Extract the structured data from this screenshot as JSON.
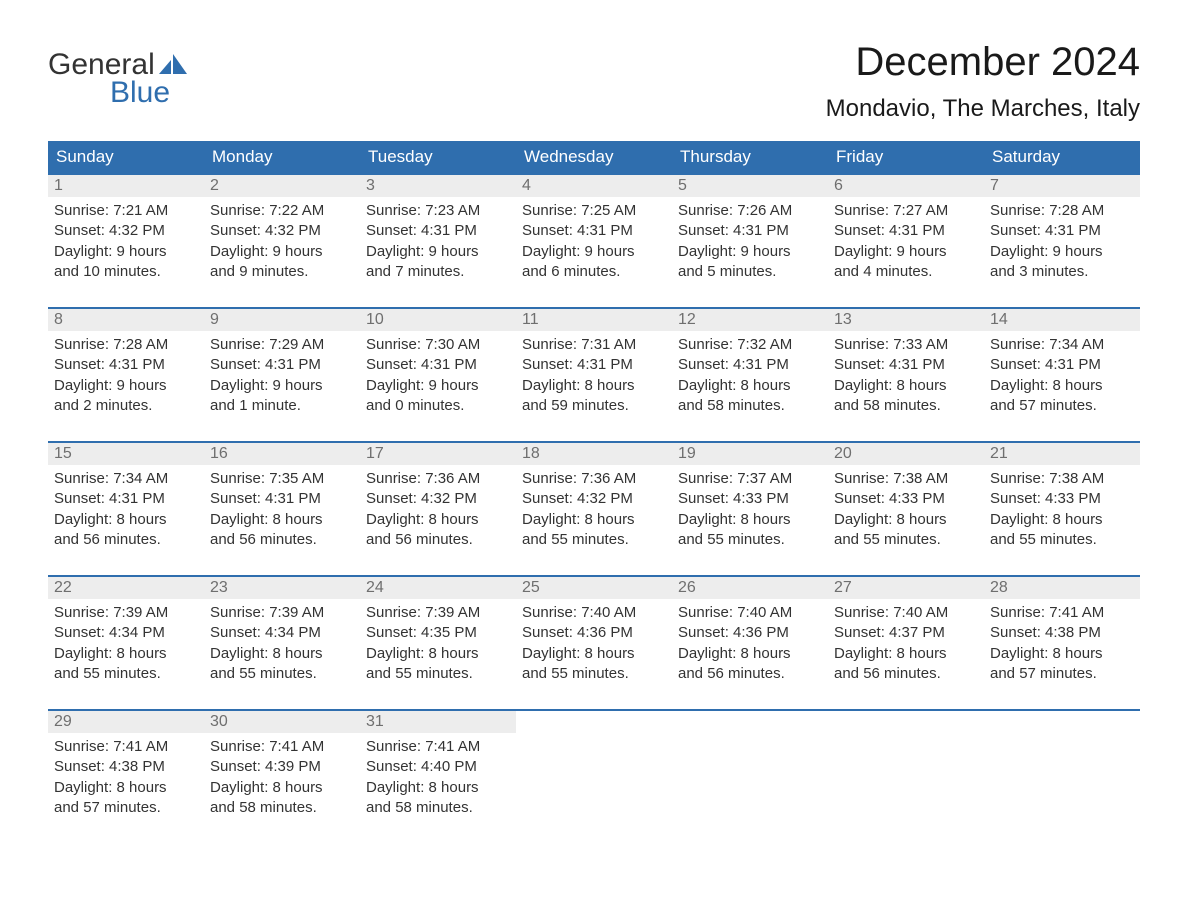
{
  "brand": {
    "word1": "General",
    "word2": "Blue",
    "word1_color": "#333333",
    "word2_color": "#2f6eae",
    "sail_color": "#2f6eae"
  },
  "title": "December 2024",
  "location": "Mondavio, The Marches, Italy",
  "colors": {
    "header_bg": "#2f6eae",
    "header_text": "#ffffff",
    "daynum_bg": "#ededed",
    "daynum_text": "#6f6f6f",
    "row_border": "#2f6eae",
    "body_text": "#333333",
    "page_bg": "#ffffff"
  },
  "fonts": {
    "title_size_pt": 30,
    "location_size_pt": 18,
    "dayhead_size_pt": 13,
    "daynum_size_pt": 12,
    "body_size_pt": 11
  },
  "day_headers": [
    "Sunday",
    "Monday",
    "Tuesday",
    "Wednesday",
    "Thursday",
    "Friday",
    "Saturday"
  ],
  "weeks": [
    [
      {
        "n": "1",
        "sunrise": "Sunrise: 7:21 AM",
        "sunset": "Sunset: 4:32 PM",
        "d1": "Daylight: 9 hours",
        "d2": "and 10 minutes."
      },
      {
        "n": "2",
        "sunrise": "Sunrise: 7:22 AM",
        "sunset": "Sunset: 4:32 PM",
        "d1": "Daylight: 9 hours",
        "d2": "and 9 minutes."
      },
      {
        "n": "3",
        "sunrise": "Sunrise: 7:23 AM",
        "sunset": "Sunset: 4:31 PM",
        "d1": "Daylight: 9 hours",
        "d2": "and 7 minutes."
      },
      {
        "n": "4",
        "sunrise": "Sunrise: 7:25 AM",
        "sunset": "Sunset: 4:31 PM",
        "d1": "Daylight: 9 hours",
        "d2": "and 6 minutes."
      },
      {
        "n": "5",
        "sunrise": "Sunrise: 7:26 AM",
        "sunset": "Sunset: 4:31 PM",
        "d1": "Daylight: 9 hours",
        "d2": "and 5 minutes."
      },
      {
        "n": "6",
        "sunrise": "Sunrise: 7:27 AM",
        "sunset": "Sunset: 4:31 PM",
        "d1": "Daylight: 9 hours",
        "d2": "and 4 minutes."
      },
      {
        "n": "7",
        "sunrise": "Sunrise: 7:28 AM",
        "sunset": "Sunset: 4:31 PM",
        "d1": "Daylight: 9 hours",
        "d2": "and 3 minutes."
      }
    ],
    [
      {
        "n": "8",
        "sunrise": "Sunrise: 7:28 AM",
        "sunset": "Sunset: 4:31 PM",
        "d1": "Daylight: 9 hours",
        "d2": "and 2 minutes."
      },
      {
        "n": "9",
        "sunrise": "Sunrise: 7:29 AM",
        "sunset": "Sunset: 4:31 PM",
        "d1": "Daylight: 9 hours",
        "d2": "and 1 minute."
      },
      {
        "n": "10",
        "sunrise": "Sunrise: 7:30 AM",
        "sunset": "Sunset: 4:31 PM",
        "d1": "Daylight: 9 hours",
        "d2": "and 0 minutes."
      },
      {
        "n": "11",
        "sunrise": "Sunrise: 7:31 AM",
        "sunset": "Sunset: 4:31 PM",
        "d1": "Daylight: 8 hours",
        "d2": "and 59 minutes."
      },
      {
        "n": "12",
        "sunrise": "Sunrise: 7:32 AM",
        "sunset": "Sunset: 4:31 PM",
        "d1": "Daylight: 8 hours",
        "d2": "and 58 minutes."
      },
      {
        "n": "13",
        "sunrise": "Sunrise: 7:33 AM",
        "sunset": "Sunset: 4:31 PM",
        "d1": "Daylight: 8 hours",
        "d2": "and 58 minutes."
      },
      {
        "n": "14",
        "sunrise": "Sunrise: 7:34 AM",
        "sunset": "Sunset: 4:31 PM",
        "d1": "Daylight: 8 hours",
        "d2": "and 57 minutes."
      }
    ],
    [
      {
        "n": "15",
        "sunrise": "Sunrise: 7:34 AM",
        "sunset": "Sunset: 4:31 PM",
        "d1": "Daylight: 8 hours",
        "d2": "and 56 minutes."
      },
      {
        "n": "16",
        "sunrise": "Sunrise: 7:35 AM",
        "sunset": "Sunset: 4:31 PM",
        "d1": "Daylight: 8 hours",
        "d2": "and 56 minutes."
      },
      {
        "n": "17",
        "sunrise": "Sunrise: 7:36 AM",
        "sunset": "Sunset: 4:32 PM",
        "d1": "Daylight: 8 hours",
        "d2": "and 56 minutes."
      },
      {
        "n": "18",
        "sunrise": "Sunrise: 7:36 AM",
        "sunset": "Sunset: 4:32 PM",
        "d1": "Daylight: 8 hours",
        "d2": "and 55 minutes."
      },
      {
        "n": "19",
        "sunrise": "Sunrise: 7:37 AM",
        "sunset": "Sunset: 4:33 PM",
        "d1": "Daylight: 8 hours",
        "d2": "and 55 minutes."
      },
      {
        "n": "20",
        "sunrise": "Sunrise: 7:38 AM",
        "sunset": "Sunset: 4:33 PM",
        "d1": "Daylight: 8 hours",
        "d2": "and 55 minutes."
      },
      {
        "n": "21",
        "sunrise": "Sunrise: 7:38 AM",
        "sunset": "Sunset: 4:33 PM",
        "d1": "Daylight: 8 hours",
        "d2": "and 55 minutes."
      }
    ],
    [
      {
        "n": "22",
        "sunrise": "Sunrise: 7:39 AM",
        "sunset": "Sunset: 4:34 PM",
        "d1": "Daylight: 8 hours",
        "d2": "and 55 minutes."
      },
      {
        "n": "23",
        "sunrise": "Sunrise: 7:39 AM",
        "sunset": "Sunset: 4:34 PM",
        "d1": "Daylight: 8 hours",
        "d2": "and 55 minutes."
      },
      {
        "n": "24",
        "sunrise": "Sunrise: 7:39 AM",
        "sunset": "Sunset: 4:35 PM",
        "d1": "Daylight: 8 hours",
        "d2": "and 55 minutes."
      },
      {
        "n": "25",
        "sunrise": "Sunrise: 7:40 AM",
        "sunset": "Sunset: 4:36 PM",
        "d1": "Daylight: 8 hours",
        "d2": "and 55 minutes."
      },
      {
        "n": "26",
        "sunrise": "Sunrise: 7:40 AM",
        "sunset": "Sunset: 4:36 PM",
        "d1": "Daylight: 8 hours",
        "d2": "and 56 minutes."
      },
      {
        "n": "27",
        "sunrise": "Sunrise: 7:40 AM",
        "sunset": "Sunset: 4:37 PM",
        "d1": "Daylight: 8 hours",
        "d2": "and 56 minutes."
      },
      {
        "n": "28",
        "sunrise": "Sunrise: 7:41 AM",
        "sunset": "Sunset: 4:38 PM",
        "d1": "Daylight: 8 hours",
        "d2": "and 57 minutes."
      }
    ],
    [
      {
        "n": "29",
        "sunrise": "Sunrise: 7:41 AM",
        "sunset": "Sunset: 4:38 PM",
        "d1": "Daylight: 8 hours",
        "d2": "and 57 minutes."
      },
      {
        "n": "30",
        "sunrise": "Sunrise: 7:41 AM",
        "sunset": "Sunset: 4:39 PM",
        "d1": "Daylight: 8 hours",
        "d2": "and 58 minutes."
      },
      {
        "n": "31",
        "sunrise": "Sunrise: 7:41 AM",
        "sunset": "Sunset: 4:40 PM",
        "d1": "Daylight: 8 hours",
        "d2": "and 58 minutes."
      },
      null,
      null,
      null,
      null
    ]
  ]
}
